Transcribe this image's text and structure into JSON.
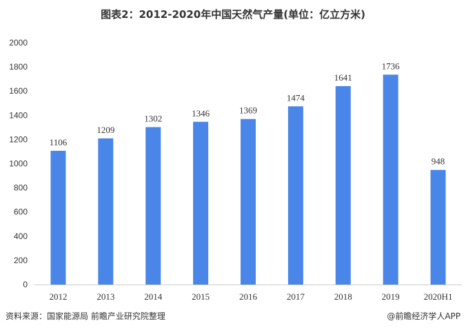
{
  "chart_data": {
    "type": "bar",
    "title": "图表2：2012-2020年中国天然气产量(单位：亿立方米)",
    "categories": [
      "2012",
      "2013",
      "2014",
      "2015",
      "2016",
      "2017",
      "2018",
      "2019",
      "2020H1"
    ],
    "values": [
      1106,
      1209,
      1302,
      1346,
      1369,
      1474,
      1641,
      1736,
      948
    ],
    "ylim": [
      0,
      2000
    ],
    "yticks": [
      "0",
      "200",
      "400",
      "600",
      "800",
      "1000",
      "1200",
      "1400",
      "1600",
      "1800",
      "2000"
    ],
    "xlabel": "",
    "ylabel": "",
    "bar_color": "#4a86e8",
    "grid": false,
    "legend": "none"
  },
  "footer": {
    "source": "资料来源：国家能源局 前瞻产业研究院整理",
    "credit": "@前瞻经济学人APP"
  }
}
